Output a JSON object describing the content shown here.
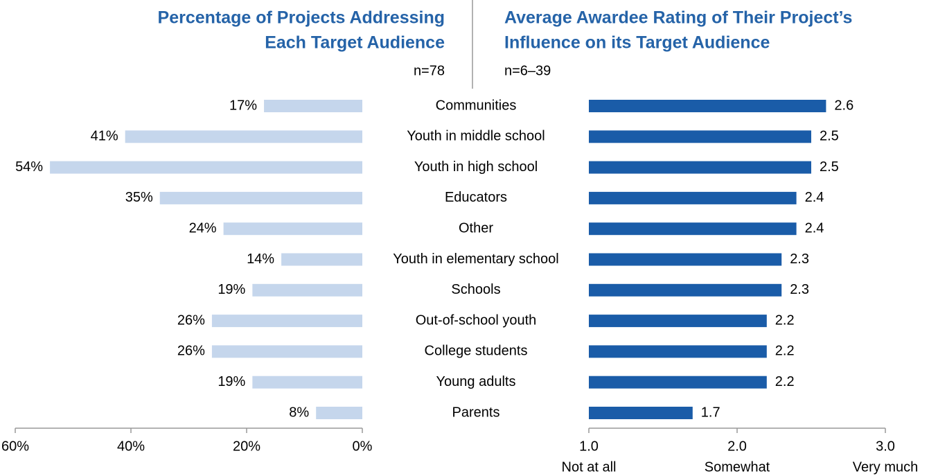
{
  "chart_data": [
    {
      "type": "bar",
      "orientation": "horizontal",
      "title": [
        "Percentage of Projects Addressing",
        "Each Target Audience"
      ],
      "subtitle": "n=78",
      "categories": [
        "Communities",
        "Youth in middle school",
        "Youth in high school",
        "Educators",
        "Other",
        "Youth in elementary school",
        "Schools",
        "Out-of-school youth",
        "College students",
        "Young adults",
        "Parents"
      ],
      "values": [
        17,
        41,
        54,
        35,
        24,
        14,
        19,
        26,
        26,
        19,
        8
      ],
      "value_labels": [
        "17%",
        "41%",
        "54%",
        "35%",
        "24%",
        "14%",
        "19%",
        "26%",
        "26%",
        "19%",
        "8%"
      ],
      "color": "#c5d6ec",
      "xlim": [
        60,
        0
      ],
      "xticks": [
        {
          "value": 60,
          "label": "60%"
        },
        {
          "value": 40,
          "label": "40%"
        },
        {
          "value": 20,
          "label": "20%"
        },
        {
          "value": 0,
          "label": "0%"
        }
      ]
    },
    {
      "type": "bar",
      "orientation": "horizontal",
      "title": [
        "Average Awardee Rating of Their Project’s",
        "Influence on its Target Audience"
      ],
      "subtitle": "n=6–39",
      "values": [
        2.6,
        2.5,
        2.5,
        2.4,
        2.4,
        2.3,
        2.3,
        2.2,
        2.2,
        2.2,
        1.7
      ],
      "color": "#1a5ca8",
      "xlim": [
        1,
        3
      ],
      "xticks": [
        {
          "value": 1,
          "label": "1.0"
        },
        {
          "value": 2,
          "label": "2.0"
        },
        {
          "value": 3,
          "label": "3.0"
        }
      ],
      "xtick_sublabels": [
        "Not at all",
        "Somewhat",
        "Very much"
      ]
    }
  ]
}
